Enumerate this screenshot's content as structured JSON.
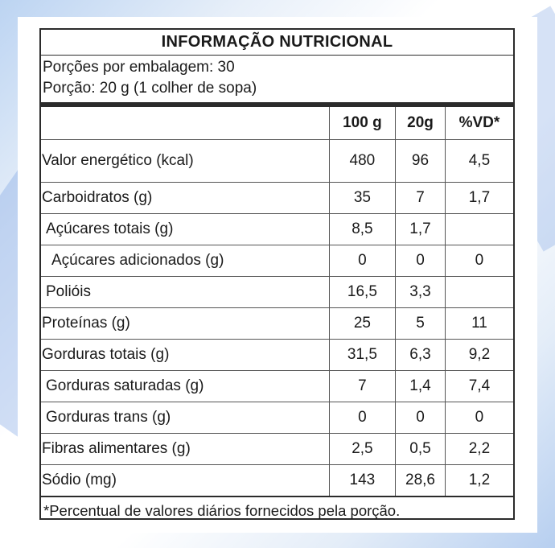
{
  "label": {
    "title": "INFORMAÇÃO NUTRICIONAL",
    "servings_per_package": "Porções por embalagem: 30",
    "serving_size": "Porção: 20 g (1 colher de sopa)",
    "columns": [
      "",
      "100 g",
      "20g",
      "%VD*"
    ],
    "rows": [
      {
        "name": "Valor energético (kcal)",
        "per100": "480",
        "perServing": "96",
        "dv": "4,5"
      },
      {
        "name": "Carboidratos (g)",
        "per100": "35",
        "perServing": "7",
        "dv": "1,7"
      },
      {
        "name": "Açúcares totais (g)",
        "per100": "8,5",
        "perServing": "1,7",
        "dv": ""
      },
      {
        "name": "Açúcares adicionados (g)",
        "per100": "0",
        "perServing": "0",
        "dv": "0"
      },
      {
        "name": "Polióis",
        "per100": "16,5",
        "perServing": "3,3",
        "dv": ""
      },
      {
        "name": "Proteínas (g)",
        "per100": "25",
        "perServing": "5",
        "dv": "11"
      },
      {
        "name": "Gorduras totais (g)",
        "per100": "31,5",
        "perServing": "6,3",
        "dv": "9,2"
      },
      {
        "name": "Gorduras saturadas (g)",
        "per100": "7",
        "perServing": "1,4",
        "dv": "7,4"
      },
      {
        "name": "Gorduras trans (g)",
        "per100": "0",
        "perServing": "0",
        "dv": "0"
      },
      {
        "name": "Fibras alimentares (g)",
        "per100": "2,5",
        "perServing": "0,5",
        "dv": "2,2"
      },
      {
        "name": "Sódio (mg)",
        "per100": "143",
        "perServing": "28,6",
        "dv": "1,2"
      }
    ],
    "footnote": "*Percentual de valores diários fornecidos pela porção."
  }
}
